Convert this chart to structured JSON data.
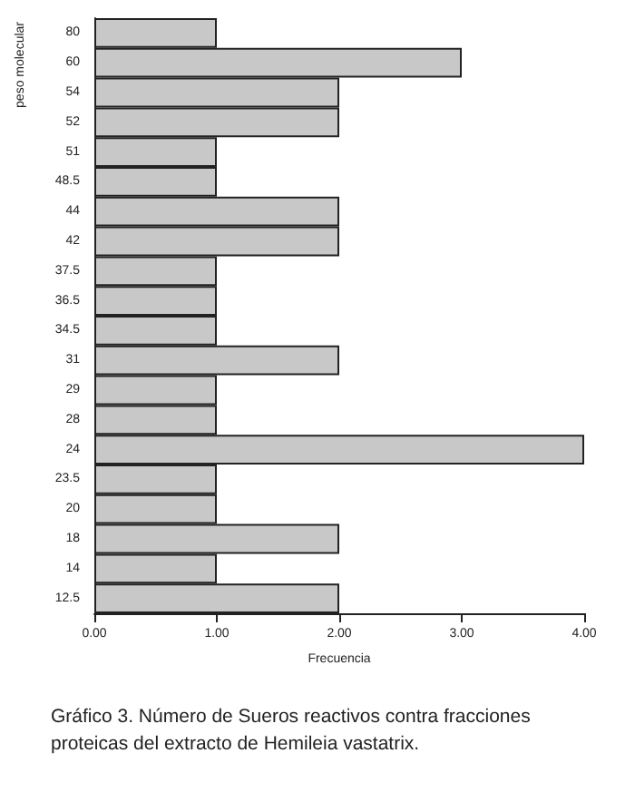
{
  "chart_data": {
    "type": "bar",
    "orientation": "horizontal",
    "categories": [
      "80",
      "60",
      "54",
      "52",
      "51",
      "48.5",
      "44",
      "42",
      "37.5",
      "36.5",
      "34.5",
      "31",
      "29",
      "28",
      "24",
      "23.5",
      "20",
      "18",
      "14",
      "12.5"
    ],
    "values": [
      1,
      3,
      2,
      2,
      1,
      1,
      2,
      2,
      1,
      1,
      1,
      2,
      1,
      1,
      4,
      1,
      1,
      2,
      1,
      2
    ],
    "color": "#c8c8c8",
    "xlim": [
      0,
      4
    ],
    "xticks": [
      {
        "value": 0,
        "label": "0.00"
      },
      {
        "value": 1,
        "label": "1.00"
      },
      {
        "value": 2,
        "label": "2.00"
      },
      {
        "value": 3,
        "label": "3.00"
      },
      {
        "value": 4,
        "label": "4.00"
      }
    ],
    "xlabel": "Frecuencia",
    "ylabel": "peso molecular",
    "grid": false,
    "annotations": [
      "Gráfico 3. Número de Sueros reactivos contra fracciones proteicas del extracto de Hemileia vastatrix."
    ]
  }
}
